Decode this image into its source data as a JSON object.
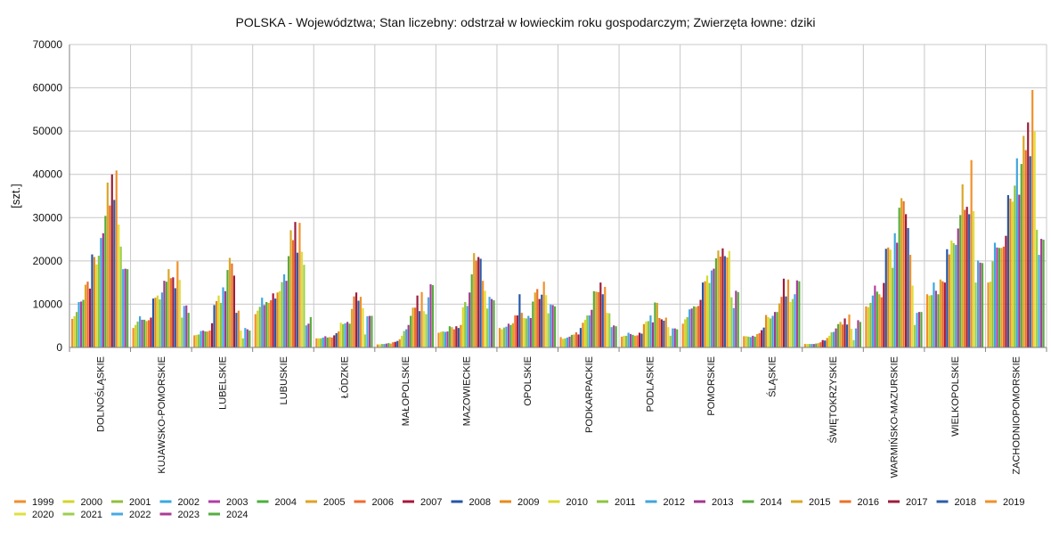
{
  "chart_data": {
    "type": "bar",
    "title": "POLSKA - Województwa; Stan liczebny: odstrzał w łowieckim roku gospodarczym; Zwierzęta łowne: dziki",
    "ylabel": "[szt.]",
    "xlabel": "",
    "ylim": [
      0,
      70000
    ],
    "yticks": [
      "0",
      "10000",
      "20000",
      "30000",
      "40000",
      "50000",
      "60000",
      "70000"
    ],
    "ytick_values": [
      0,
      10000,
      20000,
      30000,
      40000,
      50000,
      60000,
      70000
    ],
    "grid": true,
    "legend_position": "bottom",
    "categories": [
      "DOLNOŚLĄSKIE",
      "KUJAWSKO-POMORSKIE",
      "LUBELSKIE",
      "LUBUSKIE",
      "ŁÓDZKIE",
      "MAŁOPOLSKIE",
      "MAZOWIECKIE",
      "OPOLSKIE",
      "PODKARPACKIE",
      "PODLASKIE",
      "POMORSKIE",
      "ŚLĄSKIE",
      "ŚWIĘTOKRZYSKIE",
      "WARMIŃSKO-MAZURSKIE",
      "WIELKOPOLSKIE",
      "ZACHODNIOPOMORSKIE"
    ],
    "series": [
      {
        "name": "1999",
        "color": "#f28e2b",
        "values": [
          6600,
          4500,
          2800,
          7700,
          2100,
          700,
          3400,
          4500,
          2400,
          2500,
          5500,
          2600,
          800,
          9500,
          12300,
          15000
        ]
      },
      {
        "name": "2000",
        "color": "#d4d42a",
        "values": [
          7200,
          5200,
          2900,
          8500,
          2100,
          700,
          3600,
          4200,
          2000,
          2700,
          6500,
          2600,
          800,
          9300,
          12000,
          15200
        ]
      },
      {
        "name": "2001",
        "color": "#8fbf3c",
        "values": [
          8200,
          6000,
          3000,
          9400,
          2100,
          800,
          3700,
          4600,
          2100,
          2700,
          7000,
          2500,
          800,
          10300,
          12100,
          19900
        ]
      },
      {
        "name": "2002",
        "color": "#3aa8e0",
        "values": [
          10500,
          7200,
          3800,
          11500,
          2300,
          800,
          3600,
          4800,
          2300,
          3400,
          8800,
          2400,
          800,
          12000,
          15000,
          24200
        ]
      },
      {
        "name": "2003",
        "color": "#b03ea4",
        "values": [
          10600,
          6400,
          3900,
          9800,
          2600,
          900,
          3700,
          5500,
          2500,
          3100,
          9000,
          2700,
          800,
          14300,
          13100,
          23100
        ]
      },
      {
        "name": "2004",
        "color": "#4caf3c",
        "values": [
          11000,
          6400,
          3700,
          10500,
          2300,
          1000,
          4900,
          5200,
          2900,
          2900,
          9500,
          2500,
          900,
          12900,
          12300,
          23000
        ]
      },
      {
        "name": "2005",
        "color": "#dfa324",
        "values": [
          14500,
          6100,
          3700,
          10300,
          2400,
          900,
          4700,
          5600,
          3000,
          2700,
          9400,
          3100,
          1000,
          12300,
          15700,
          23000
        ]
      },
      {
        "name": "2006",
        "color": "#ef6a2c",
        "values": [
          15200,
          6300,
          3900,
          10900,
          2300,
          1200,
          4200,
          7400,
          3500,
          2800,
          9600,
          3300,
          1200,
          11600,
          15300,
          23300
        ]
      },
      {
        "name": "2007",
        "color": "#a8163a",
        "values": [
          13600,
          6900,
          5600,
          12500,
          2800,
          1300,
          4900,
          7400,
          3000,
          3400,
          11000,
          4000,
          1700,
          14900,
          15000,
          25800
        ]
      },
      {
        "name": "2008",
        "color": "#2456a8",
        "values": [
          21500,
          11300,
          9800,
          11300,
          3300,
          1500,
          4500,
          12300,
          4500,
          3200,
          15000,
          4600,
          1600,
          22800,
          22700,
          35200
        ]
      },
      {
        "name": "2009",
        "color": "#e88a1a",
        "values": [
          20900,
          11500,
          10700,
          12700,
          3700,
          1900,
          5200,
          8000,
          5700,
          5400,
          15300,
          7500,
          2200,
          23100,
          21500,
          34400
        ]
      },
      {
        "name": "2010",
        "color": "#d9d92c",
        "values": [
          19200,
          12000,
          12000,
          13000,
          5700,
          2700,
          9300,
          6800,
          6400,
          6000,
          16600,
          7000,
          2700,
          22600,
          24700,
          33700
        ]
      },
      {
        "name": "2011",
        "color": "#8dc53e",
        "values": [
          21200,
          11100,
          10300,
          15100,
          5400,
          3800,
          10500,
          6700,
          7400,
          6100,
          14900,
          6700,
          3500,
          18400,
          24100,
          37400
        ]
      },
      {
        "name": "2012",
        "color": "#41a4dc",
        "values": [
          25300,
          12700,
          13900,
          16900,
          5600,
          4200,
          9600,
          7300,
          7400,
          7400,
          17800,
          7300,
          3600,
          26400,
          23700,
          43700
        ]
      },
      {
        "name": "2013",
        "color": "#a0388f",
        "values": [
          26400,
          15400,
          13000,
          15400,
          5900,
          5200,
          12700,
          6800,
          8700,
          5800,
          18200,
          8200,
          4400,
          24200,
          27500,
          35300
        ]
      },
      {
        "name": "2014",
        "color": "#5aaa3c",
        "values": [
          30400,
          15200,
          17900,
          21100,
          5500,
          7300,
          16900,
          10600,
          13000,
          10400,
          20600,
          8200,
          5400,
          32300,
          30600,
          42400
        ]
      },
      {
        "name": "2015",
        "color": "#d9a726",
        "values": [
          38100,
          18100,
          20700,
          27100,
          8900,
          9200,
          21800,
          12700,
          12900,
          10300,
          22400,
          10200,
          5900,
          34500,
          37700,
          48900
        ]
      },
      {
        "name": "2016",
        "color": "#ec7028",
        "values": [
          32800,
          16000,
          19400,
          24800,
          11800,
          9200,
          20100,
          13500,
          12800,
          6800,
          21000,
          11700,
          5300,
          33800,
          31800,
          45600
        ]
      },
      {
        "name": "2017",
        "color": "#9b1d3b",
        "values": [
          40000,
          16200,
          16600,
          29000,
          12700,
          12000,
          20900,
          11200,
          15000,
          6500,
          22900,
          15900,
          6700,
          30800,
          32500,
          52000
        ]
      },
      {
        "name": "2018",
        "color": "#2e5ba8",
        "values": [
          34100,
          13700,
          8000,
          21900,
          10800,
          8400,
          20500,
          12200,
          12300,
          6200,
          21100,
          11800,
          5300,
          27600,
          30800,
          44200
        ]
      },
      {
        "name": "2019",
        "color": "#f0902a",
        "values": [
          40900,
          19900,
          8500,
          28800,
          11700,
          12800,
          15400,
          15200,
          14000,
          6900,
          20800,
          15700,
          7600,
          21400,
          43300,
          59500
        ]
      },
      {
        "name": "2020",
        "color": "#e0df3c",
        "values": [
          28400,
          15600,
          3900,
          22100,
          9100,
          8400,
          13100,
          12100,
          8000,
          4700,
          22300,
          10500,
          4300,
          14300,
          31500,
          50000
        ]
      },
      {
        "name": "2021",
        "color": "#9ccf4f",
        "values": [
          23300,
          6900,
          2100,
          19100,
          3000,
          7700,
          9000,
          7900,
          7900,
          2700,
          11600,
          11200,
          1700,
          5200,
          15000,
          27200
        ]
      },
      {
        "name": "2022",
        "color": "#48a9e3",
        "values": [
          18100,
          9600,
          4500,
          5100,
          7200,
          11600,
          11700,
          9900,
          4700,
          4400,
          9100,
          12300,
          4400,
          8000,
          20100,
          21400
        ]
      },
      {
        "name": "2023",
        "color": "#a93d94",
        "values": [
          18200,
          9700,
          4200,
          5500,
          7300,
          14600,
          11200,
          9800,
          5100,
          4400,
          13100,
          15500,
          6300,
          8200,
          19600,
          25100
        ]
      },
      {
        "name": "2024",
        "color": "#55ae3f",
        "values": [
          18100,
          8000,
          3900,
          7000,
          7300,
          14400,
          10900,
          9500,
          4900,
          4200,
          12800,
          15300,
          5900,
          8200,
          19500,
          24900
        ]
      }
    ]
  }
}
